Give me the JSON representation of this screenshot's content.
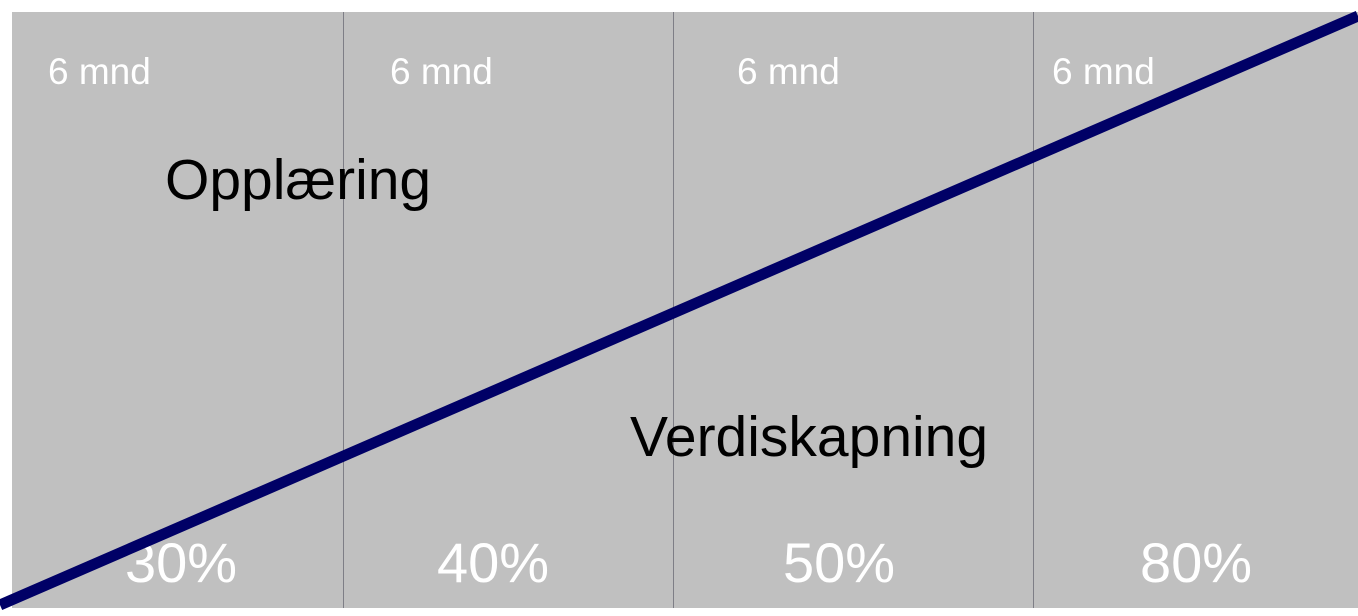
{
  "phases": [
    {
      "duration": "6 mnd",
      "share": "30%"
    },
    {
      "duration": "6 mnd",
      "share": "40%"
    },
    {
      "duration": "6 mnd",
      "share": "50%"
    },
    {
      "duration": "6 mnd",
      "share": "80%"
    }
  ],
  "labels": {
    "upper_area": "Opplæring",
    "lower_area": "Verdiskapning"
  },
  "colors": {
    "background": "#c0c0c0",
    "trend_line": "#000066",
    "phase_text": "#ffffff",
    "area_text": "#000000",
    "divider": "#7e7e86"
  }
}
